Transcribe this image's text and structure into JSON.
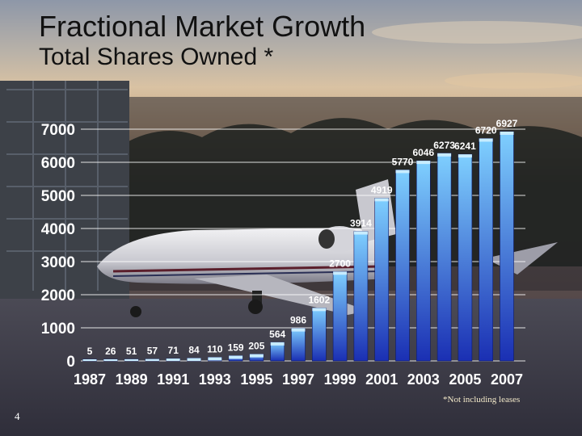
{
  "slide": {
    "title": "Fractional Market Growth",
    "subtitle": "Total Shares Owned *",
    "footnote": "*Not including leases",
    "page_number": "4"
  },
  "colors": {
    "bar_top": "#7fd0ff",
    "bar_bottom": "#1a2fb3",
    "grid": "#ffffff",
    "axis_text": "#ffffff"
  },
  "chart_data": {
    "type": "bar",
    "categories": [
      "1987",
      "1988",
      "1989",
      "1990",
      "1991",
      "1992",
      "1993",
      "1994",
      "1995",
      "1996",
      "1997",
      "1998",
      "1999",
      "2000",
      "2001",
      "2002",
      "2003",
      "2004",
      "2005",
      "2006",
      "2007"
    ],
    "x_tick_labels": [
      "1987",
      "1989",
      "1991",
      "1993",
      "1995",
      "1997",
      "1999",
      "2001",
      "2003",
      "2005",
      "2007"
    ],
    "values": [
      5,
      26,
      51,
      57,
      71,
      84,
      110,
      159,
      205,
      564,
      986,
      1602,
      2700,
      3914,
      4919,
      5770,
      6046,
      6273,
      6241,
      6720,
      6927
    ],
    "data_labels": [
      "5",
      "26",
      "51",
      "57",
      "71",
      "84",
      "110",
      "159",
      "205",
      "564",
      "986",
      "1602",
      "2700",
      "3914",
      "4919",
      "5770",
      "6046",
      "6273",
      "6241",
      "6720",
      "6927"
    ],
    "y_ticks": [
      "0",
      "1000",
      "2000",
      "3000",
      "4000",
      "5000",
      "6000",
      "7000"
    ],
    "ylim": [
      0,
      7000
    ],
    "grid": true,
    "legend": "none"
  }
}
